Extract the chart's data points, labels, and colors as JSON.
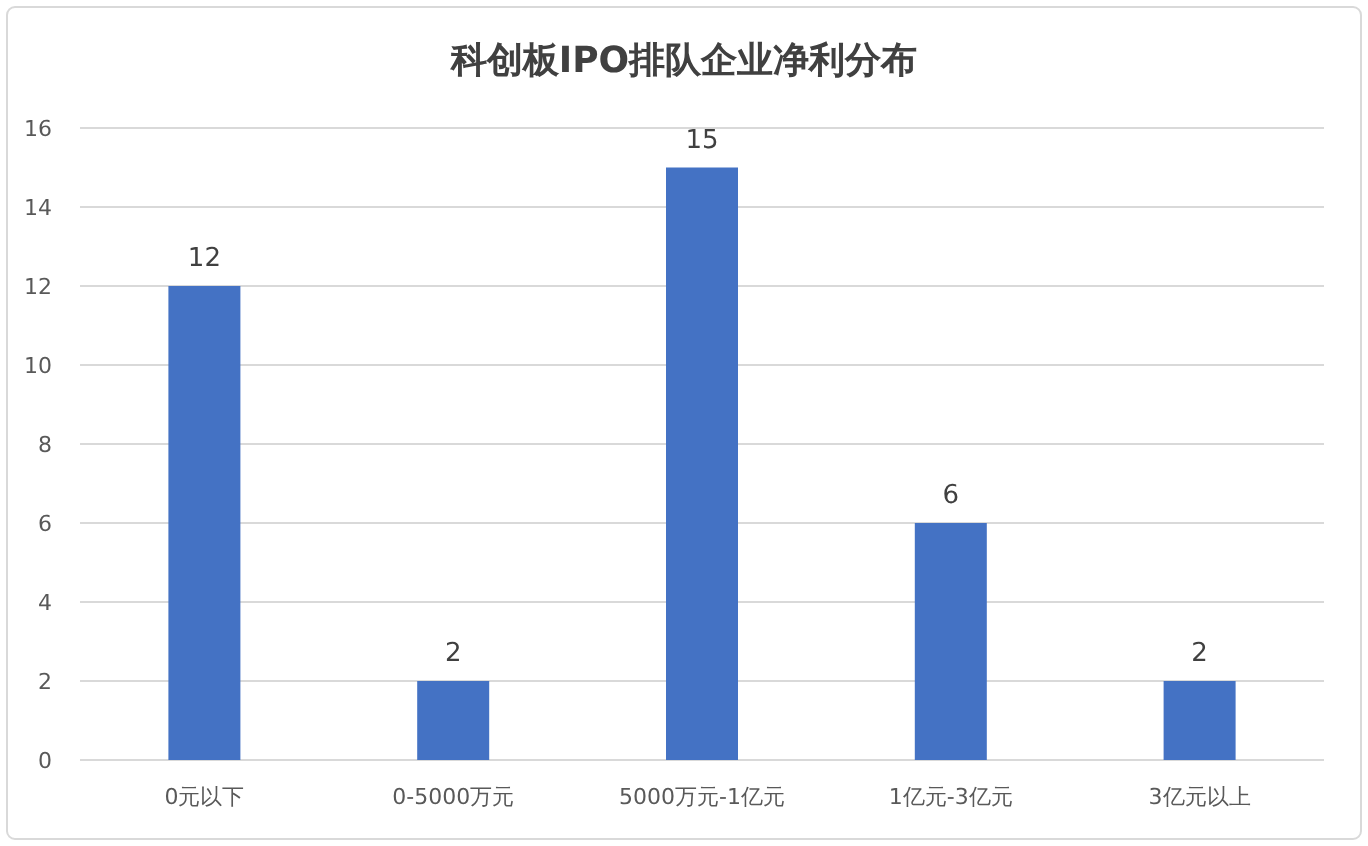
{
  "chart_data": {
    "type": "bar",
    "title": "科创板IPO排队企业净利分布",
    "categories": [
      "0元以下",
      "0-5000万元",
      "5000万元-1亿元",
      "1亿元-3亿元",
      "3亿元以上"
    ],
    "values": [
      12,
      2,
      15,
      6,
      2
    ],
    "color": "#4472c4",
    "ylim": [
      0,
      16
    ],
    "yticks": [
      0,
      2,
      4,
      6,
      8,
      10,
      12,
      14,
      16
    ],
    "grid": "y",
    "data_labels": true
  }
}
